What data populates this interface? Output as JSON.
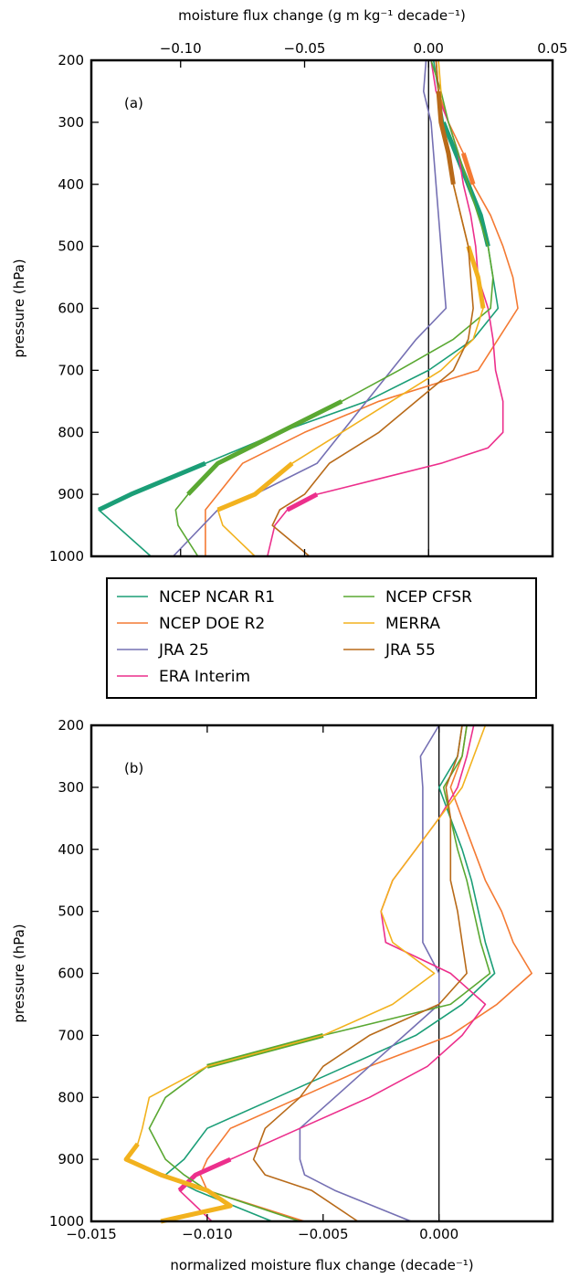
{
  "chart_data": [
    {
      "type": "line",
      "panel_label": "(a)",
      "xlabel": "moisture flux change (g m kg⁻¹ decade⁻¹)",
      "ylabel": "pressure (hPa)",
      "xaxis_position": "top",
      "xlim": [
        -0.136,
        0.05
      ],
      "ylim": [
        1000,
        200
      ],
      "xticks": [
        -0.1,
        -0.05,
        0.0,
        0.05
      ],
      "xtick_labels": [
        "−0.10",
        "−0.05",
        "0.00",
        "0.05"
      ],
      "yticks": [
        200,
        300,
        400,
        500,
        600,
        700,
        800,
        900,
        1000
      ],
      "ytick_labels": [
        "200",
        "300",
        "400",
        "500",
        "600",
        "700",
        "800",
        "900",
        "1000"
      ],
      "zero_line": 0,
      "series": [
        {
          "name": "NCEP NCAR R1",
          "color": "#1b9e77",
          "pressure": [
            200,
            250,
            300,
            350,
            400,
            450,
            500,
            550,
            600,
            650,
            700,
            750,
            800,
            850,
            900,
            925,
            1000
          ],
          "values": [
            0.002,
            0.004,
            0.006,
            0.011,
            0.016,
            0.021,
            0.024,
            0.026,
            0.028,
            0.018,
            0.0,
            -0.025,
            -0.06,
            -0.09,
            -0.12,
            -0.133,
            -0.112
          ],
          "bold_segments": [
            [
              300,
              500
            ],
            [
              850,
              925
            ]
          ]
        },
        {
          "name": "NCEP DOE R2",
          "color": "#f47a33",
          "pressure": [
            200,
            250,
            300,
            350,
            400,
            450,
            500,
            550,
            600,
            650,
            700,
            750,
            800,
            850,
            900,
            925,
            1000
          ],
          "values": [
            0.003,
            0.004,
            0.008,
            0.014,
            0.018,
            0.025,
            0.03,
            0.034,
            0.036,
            0.028,
            0.02,
            -0.02,
            -0.05,
            -0.075,
            -0.085,
            -0.09,
            -0.09
          ],
          "bold_segments": [
            [
              350,
              400
            ]
          ]
        },
        {
          "name": "JRA 25",
          "color": "#7570b3",
          "pressure": [
            200,
            250,
            300,
            350,
            400,
            450,
            500,
            550,
            600,
            650,
            700,
            750,
            800,
            850,
            900,
            925,
            1000
          ],
          "values": [
            -0.001,
            -0.002,
            0.001,
            0.002,
            0.003,
            0.004,
            0.005,
            0.006,
            0.007,
            -0.005,
            -0.015,
            -0.025,
            -0.035,
            -0.045,
            -0.07,
            -0.085,
            -0.103
          ],
          "bold_segments": []
        },
        {
          "name": "ERA Interim",
          "color": "#ec2f8c",
          "pressure": [
            200,
            250,
            300,
            350,
            400,
            450,
            500,
            550,
            600,
            650,
            700,
            750,
            800,
            825,
            850,
            875,
            900,
            925,
            950,
            1000
          ],
          "values": [
            0.001,
            0.003,
            0.008,
            0.012,
            0.014,
            0.017,
            0.019,
            0.02,
            0.024,
            0.026,
            0.027,
            0.03,
            0.03,
            0.024,
            0.005,
            -0.02,
            -0.045,
            -0.057,
            -0.062,
            -0.065
          ],
          "bold_segments": [
            [
              900,
              925
            ]
          ]
        },
        {
          "name": "NCEP CFSR",
          "color": "#5aa832",
          "pressure": [
            200,
            250,
            300,
            350,
            400,
            450,
            500,
            550,
            600,
            650,
            700,
            750,
            800,
            850,
            900,
            925,
            950,
            1000
          ],
          "values": [
            0.001,
            0.005,
            0.008,
            0.012,
            0.016,
            0.02,
            0.024,
            0.026,
            0.025,
            0.01,
            -0.012,
            -0.035,
            -0.06,
            -0.085,
            -0.097,
            -0.102,
            -0.101,
            -0.093
          ],
          "bold_segments": [
            [
              750,
              900
            ]
          ]
        },
        {
          "name": "MERRA",
          "color": "#f2b21e",
          "pressure": [
            200,
            250,
            300,
            350,
            400,
            450,
            500,
            550,
            600,
            650,
            700,
            750,
            800,
            850,
            900,
            925,
            950,
            1000
          ],
          "values": [
            0.004,
            0.005,
            0.005,
            0.008,
            0.01,
            0.013,
            0.016,
            0.02,
            0.022,
            0.018,
            0.005,
            -0.015,
            -0.035,
            -0.055,
            -0.07,
            -0.085,
            -0.083,
            -0.07
          ],
          "bold_segments": [
            [
              500,
              600
            ],
            [
              850,
              925
            ]
          ]
        },
        {
          "name": "JRA 55",
          "color": "#b86a19",
          "pressure": [
            200,
            250,
            300,
            350,
            400,
            450,
            500,
            550,
            600,
            650,
            700,
            750,
            800,
            850,
            900,
            925,
            950,
            1000
          ],
          "values": [
            0.003,
            0.004,
            0.005,
            0.008,
            0.01,
            0.013,
            0.016,
            0.017,
            0.018,
            0.016,
            0.01,
            -0.005,
            -0.02,
            -0.04,
            -0.05,
            -0.06,
            -0.063,
            -0.048
          ],
          "bold_segments": [
            [
              250,
              400
            ]
          ]
        }
      ],
      "legend": {
        "placement": "between panels",
        "entries_left": [
          "NCEP NCAR R1",
          "NCEP DOE R2",
          "JRA 25",
          "ERA Interim"
        ],
        "entries_right": [
          "NCEP CFSR",
          "MERRA",
          "JRA 55"
        ]
      }
    },
    {
      "type": "line",
      "panel_label": "(b)",
      "xlabel": "normalized moisture flux change (decade⁻¹)",
      "ylabel": "pressure (hPa)",
      "xaxis_position": "bottom",
      "xlim": [
        -0.015,
        0.0049
      ],
      "ylim": [
        1000,
        200
      ],
      "xticks": [
        -0.015,
        -0.01,
        -0.005,
        0.0
      ],
      "xtick_labels": [
        "−0.015",
        "−0.010",
        "−0.005",
        "0.000"
      ],
      "yticks": [
        200,
        300,
        400,
        500,
        600,
        700,
        800,
        900,
        1000
      ],
      "ytick_labels": [
        "200",
        "300",
        "400",
        "500",
        "600",
        "700",
        "800",
        "900",
        "1000"
      ],
      "zero_line": 0,
      "series": [
        {
          "name": "NCEP NCAR R1",
          "color": "#1b9e77",
          "pressure": [
            200,
            250,
            300,
            350,
            400,
            450,
            500,
            550,
            600,
            650,
            700,
            750,
            800,
            850,
            900,
            925,
            950,
            1000
          ],
          "values": [
            0.001,
            0.0008,
            0.0,
            0.0005,
            0.001,
            0.0014,
            0.0017,
            0.002,
            0.0024,
            0.001,
            -0.001,
            -0.004,
            -0.007,
            -0.01,
            -0.011,
            -0.0118,
            -0.0105,
            -0.0072
          ],
          "bold_segments": []
        },
        {
          "name": "NCEP DOE R2",
          "color": "#f47a33",
          "pressure": [
            200,
            250,
            300,
            350,
            400,
            450,
            500,
            550,
            600,
            650,
            700,
            750,
            800,
            850,
            900,
            925,
            950,
            1000
          ],
          "values": [
            0.0012,
            0.001,
            0.0005,
            0.001,
            0.0015,
            0.002,
            0.0027,
            0.0032,
            0.004,
            0.0025,
            0.0005,
            -0.003,
            -0.006,
            -0.009,
            -0.01,
            -0.0103,
            -0.01,
            -0.0058
          ],
          "bold_segments": []
        },
        {
          "name": "JRA 25",
          "color": "#7570b3",
          "pressure": [
            200,
            250,
            300,
            350,
            400,
            450,
            500,
            550,
            600,
            650,
            700,
            750,
            800,
            850,
            900,
            925,
            950,
            1000
          ],
          "values": [
            0.0,
            -0.0008,
            -0.0007,
            -0.0007,
            -0.0007,
            -0.0007,
            -0.0007,
            -0.0007,
            0.0,
            0.0,
            -0.0015,
            -0.003,
            -0.0045,
            -0.006,
            -0.006,
            -0.0058,
            -0.0045,
            -0.0012
          ],
          "bold_segments": []
        },
        {
          "name": "ERA Interim",
          "color": "#ec2f8c",
          "pressure": [
            200,
            250,
            300,
            350,
            400,
            450,
            500,
            550,
            600,
            650,
            700,
            750,
            800,
            850,
            900,
            925,
            950,
            1000
          ],
          "values": [
            0.0015,
            0.0012,
            0.0008,
            0.0,
            -0.001,
            -0.002,
            -0.0025,
            -0.0023,
            0.0005,
            0.002,
            0.001,
            -0.0005,
            -0.003,
            -0.006,
            -0.009,
            -0.0105,
            -0.0112,
            -0.0098
          ],
          "bold_segments": [
            [
              900,
              950
            ]
          ]
        },
        {
          "name": "NCEP CFSR",
          "color": "#5aa832",
          "pressure": [
            200,
            250,
            300,
            350,
            400,
            450,
            500,
            550,
            600,
            650,
            700,
            750,
            800,
            850,
            900,
            925,
            950,
            1000
          ],
          "values": [
            0.0012,
            0.001,
            0.0002,
            0.0005,
            0.0008,
            0.0012,
            0.0015,
            0.0018,
            0.0022,
            0.0005,
            -0.005,
            -0.01,
            -0.0118,
            -0.0125,
            -0.0118,
            -0.011,
            -0.01,
            -0.006
          ],
          "bold_segments": [
            [
              700,
              750
            ]
          ]
        },
        {
          "name": "MERRA",
          "color": "#f2b21e",
          "pressure": [
            200,
            250,
            300,
            350,
            400,
            450,
            500,
            550,
            600,
            650,
            700,
            750,
            800,
            850,
            875,
            900,
            925,
            950,
            975,
            1000
          ],
          "values": [
            0.002,
            0.0015,
            0.001,
            0.0,
            -0.001,
            -0.002,
            -0.0025,
            -0.002,
            -0.0002,
            -0.002,
            -0.005,
            -0.01,
            -0.0125,
            -0.0128,
            -0.013,
            -0.0135,
            -0.012,
            -0.01,
            -0.009,
            -0.012
          ],
          "bold_segments": [
            [
              875,
              1000
            ]
          ]
        },
        {
          "name": "JRA 55",
          "color": "#b86a19",
          "pressure": [
            200,
            250,
            300,
            350,
            400,
            450,
            500,
            550,
            600,
            650,
            700,
            750,
            800,
            850,
            900,
            925,
            950,
            1000
          ],
          "values": [
            0.001,
            0.0008,
            0.0003,
            0.0005,
            0.0005,
            0.0005,
            0.0008,
            0.001,
            0.0012,
            0.0,
            -0.003,
            -0.005,
            -0.006,
            -0.0075,
            -0.008,
            -0.0075,
            -0.0055,
            -0.0035
          ],
          "bold_segments": [
            [
              875,
              900
            ]
          ]
        }
      ]
    }
  ]
}
